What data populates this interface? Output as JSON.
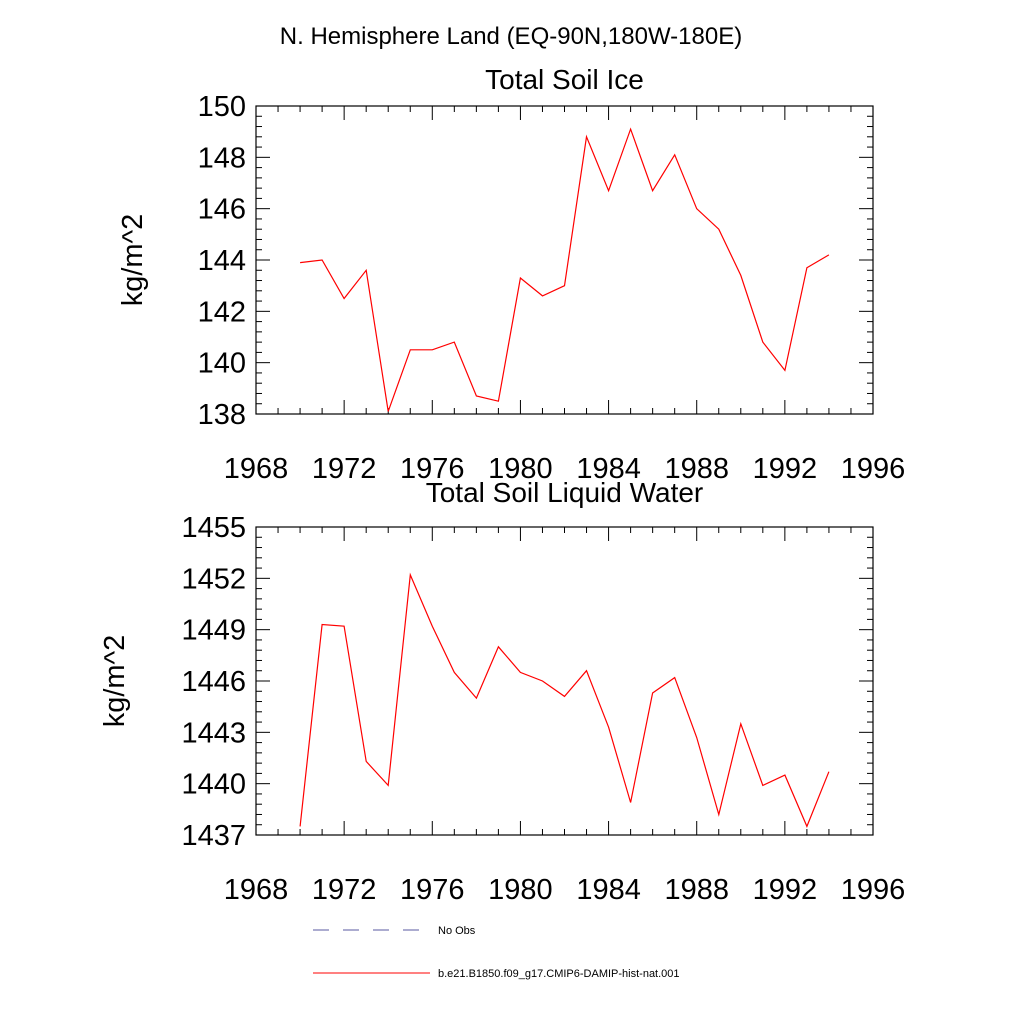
{
  "figure": {
    "suptitle": "N. Hemisphere Land (EQ-90N,180W-180E)"
  },
  "chart_data": [
    {
      "type": "line",
      "title": "Total Soil Ice",
      "xlabel": "",
      "ylabel": "kg/m^2",
      "xlim": [
        1968,
        1996
      ],
      "ylim": [
        138,
        150
      ],
      "xticks": [
        1968,
        1972,
        1976,
        1980,
        1984,
        1988,
        1992,
        1996
      ],
      "yticks": [
        138,
        140,
        142,
        144,
        146,
        148,
        150
      ],
      "grid": false,
      "series": [
        {
          "name": "b.e21.B1850.f09_g17.CMIP6-DAMIP-hist-nat.001",
          "color": "#ff0000",
          "x": [
            1970,
            1971,
            1972,
            1973,
            1974,
            1975,
            1976,
            1977,
            1978,
            1979,
            1980,
            1981,
            1982,
            1983,
            1984,
            1985,
            1986,
            1987,
            1988,
            1989,
            1990,
            1991,
            1992,
            1993,
            1994
          ],
          "y": [
            143.9,
            144.0,
            142.5,
            143.6,
            138.1,
            140.5,
            140.5,
            140.8,
            138.7,
            138.5,
            143.3,
            142.6,
            143.0,
            148.8,
            146.7,
            149.1,
            146.7,
            148.1,
            146.0,
            145.2,
            143.4,
            140.8,
            139.7,
            143.7,
            144.2
          ]
        }
      ]
    },
    {
      "type": "line",
      "title": "Total Soil Liquid Water",
      "xlabel": "",
      "ylabel": "kg/m^2",
      "xlim": [
        1968,
        1996
      ],
      "ylim": [
        1437,
        1455
      ],
      "xticks": [
        1968,
        1972,
        1976,
        1980,
        1984,
        1988,
        1992,
        1996
      ],
      "yticks": [
        1437,
        1440,
        1443,
        1446,
        1449,
        1452,
        1455
      ],
      "grid": false,
      "series": [
        {
          "name": "b.e21.B1850.f09_g17.CMIP6-DAMIP-hist-nat.001",
          "color": "#ff0000",
          "x": [
            1970,
            1971,
            1972,
            1973,
            1974,
            1975,
            1976,
            1977,
            1978,
            1979,
            1980,
            1981,
            1982,
            1983,
            1984,
            1985,
            1986,
            1987,
            1988,
            1989,
            1990,
            1991,
            1992,
            1993,
            1994
          ],
          "y": [
            1437.5,
            1449.3,
            1449.2,
            1441.3,
            1439.9,
            1452.2,
            1449.2,
            1446.5,
            1445.0,
            1448.0,
            1446.5,
            1446.0,
            1445.1,
            1446.6,
            1443.3,
            1438.9,
            1445.3,
            1446.2,
            1442.7,
            1438.2,
            1443.5,
            1439.9,
            1440.5,
            1437.5,
            1440.7
          ]
        }
      ]
    }
  ],
  "legend": {
    "placement": "bottom",
    "entries": [
      {
        "label": "No Obs",
        "color": "#5a5aa0",
        "style": "dashed"
      },
      {
        "label": "b.e21.B1850.f09_g17.CMIP6-DAMIP-hist-nat.001",
        "color": "#ff0000",
        "style": "solid"
      }
    ]
  }
}
